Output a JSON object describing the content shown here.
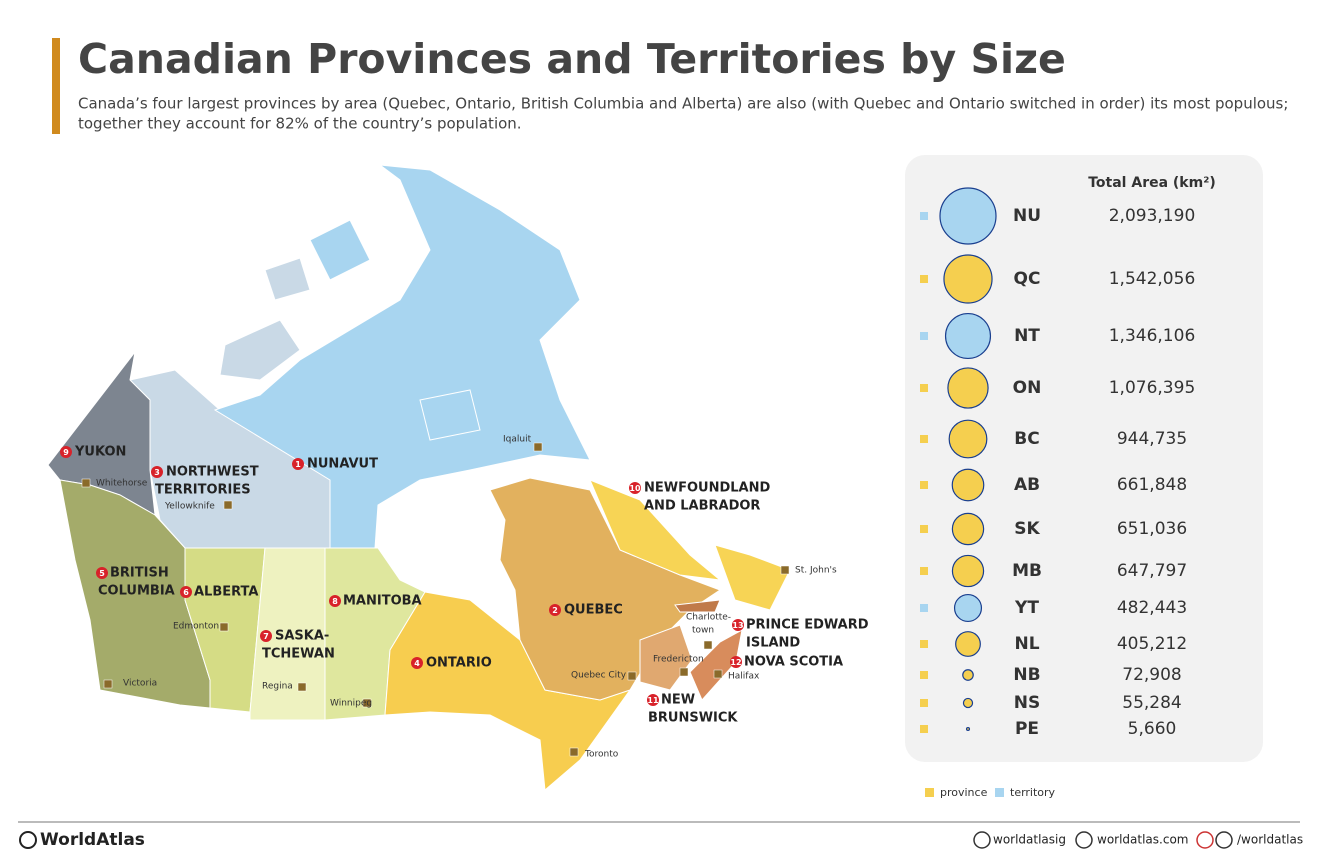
{
  "header": {
    "title": "Canadian Provinces and Territories by Size",
    "subtitle_lines": [
      "Canada’s four largest provinces by area (Quebec, Ontario, British Columbia and Alberta) are also (with Quebec and Ontario switched in order) its most populous;",
      "together they account for 82% of the country’s population."
    ]
  },
  "map": {
    "regions": [
      {
        "number": "1",
        "lines": [
          "NUNAVUT"
        ]
      },
      {
        "number": "2",
        "lines": [
          "QUEBEC"
        ]
      },
      {
        "number": "3",
        "lines": [
          "NORTHWEST",
          "TERRITORIES"
        ]
      },
      {
        "number": "4",
        "lines": [
          "ONTARIO"
        ]
      },
      {
        "number": "5",
        "lines": [
          "BRITISH",
          "COLUMBIA"
        ]
      },
      {
        "number": "6",
        "lines": [
          "ALBERTA"
        ]
      },
      {
        "number": "7",
        "lines": [
          "SASKA-",
          "TCHEWAN"
        ]
      },
      {
        "number": "8",
        "lines": [
          "MANITOBA"
        ]
      },
      {
        "number": "9",
        "lines": [
          "YUKON"
        ]
      },
      {
        "number": "10",
        "lines": [
          "NEWFOUNDLAND",
          "AND LABRADOR"
        ]
      },
      {
        "number": "11",
        "lines": [
          "NEW",
          "BRUNSWICK"
        ]
      },
      {
        "number": "12",
        "lines": [
          "NOVA SCOTIA"
        ]
      },
      {
        "number": "13",
        "lines": [
          "PRINCE EDWARD",
          "ISLAND"
        ]
      }
    ],
    "capitals": [
      [
        "Whitehorse"
      ],
      [
        "Yellowknife"
      ],
      [
        "Iqaluit"
      ],
      [
        "Edmonton"
      ],
      [
        "Victoria"
      ],
      [
        "Regina"
      ],
      [
        "Winnipeg"
      ],
      [
        "Toronto"
      ],
      [
        "Quebec City"
      ],
      [
        "Fredericton"
      ],
      [
        "Charlotte-",
        "town"
      ],
      [
        "Halifax"
      ],
      [
        "St. John's"
      ]
    ]
  },
  "table": {
    "header": "Total Area (km²)",
    "rows": [
      {
        "abbr": "NU",
        "area": {
          "value": 2093190,
          "label": "2,093,190"
        },
        "color": "#a8d5f0"
      },
      {
        "abbr": "QC",
        "area": {
          "value": 1542056,
          "label": "1,542,056"
        },
        "color": "#f5cf4f"
      },
      {
        "abbr": "NT",
        "area": {
          "value": 1346106,
          "label": "1,346,106"
        },
        "color": "#a8d5f0"
      },
      {
        "abbr": "ON",
        "area": {
          "value": 1076395,
          "label": "1,076,395"
        },
        "color": "#f5cf4f"
      },
      {
        "abbr": "BC",
        "area": {
          "value": 944735,
          "label": "944,735"
        },
        "color": "#f5cf4f"
      },
      {
        "abbr": "AB",
        "area": {
          "value": 661848,
          "label": "661,848"
        },
        "color": "#f5cf4f"
      },
      {
        "abbr": "SK",
        "area": {
          "value": 651036,
          "label": "651,036"
        },
        "color": "#f5cf4f"
      },
      {
        "abbr": "MB",
        "area": {
          "value": 647797,
          "label": "647,797"
        },
        "color": "#f5cf4f"
      },
      {
        "abbr": "YT",
        "area": {
          "value": 482443,
          "label": "482,443"
        },
        "color": "#a8d5f0"
      },
      {
        "abbr": "NL",
        "area": {
          "value": 405212,
          "label": "405,212"
        },
        "color": "#f5cf4f"
      },
      {
        "abbr": "NB",
        "area": {
          "value": 72908,
          "label": "72,908"
        },
        "color": "#f5cf4f"
      },
      {
        "abbr": "NS",
        "area": {
          "value": 55284,
          "label": "55,284"
        },
        "color": "#f5cf4f"
      },
      {
        "abbr": "PE",
        "area": {
          "value": 5660,
          "label": "5,660"
        },
        "color": "#f5cf4f"
      }
    ]
  },
  "legend": [
    {
      "label": "province",
      "color": "#f5cf4f"
    },
    {
      "label": "territory",
      "color": "#a8d5f0"
    }
  ],
  "footer": {
    "brand": "WorldAtlas",
    "links": [
      "worldatlasig",
      "worldatlas.com",
      "/worldatlas"
    ]
  }
}
